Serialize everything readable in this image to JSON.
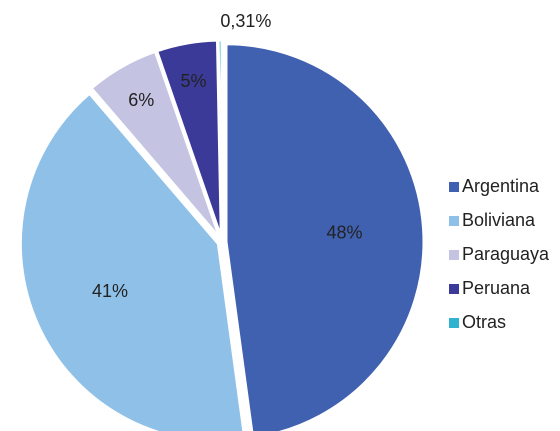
{
  "chart_data": {
    "type": "pie",
    "categories": [
      "Argentina",
      "Boliviana",
      "Paraguaya",
      "Peruana",
      "Otras"
    ],
    "values": [
      48,
      41,
      6,
      5,
      0.31
    ],
    "value_labels": [
      "48%",
      "41%",
      "6%",
      "5%",
      "0,31%"
    ],
    "colors": [
      "#4060b0",
      "#8fc1e8",
      "#c4c3e2",
      "#3b3a98",
      "#2fb3cf"
    ],
    "legend": "right"
  }
}
